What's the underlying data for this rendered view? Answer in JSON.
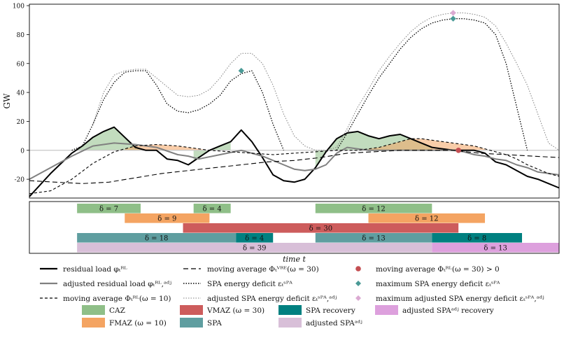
{
  "chart_data": [
    {
      "type": "line",
      "ylabel": "GW",
      "ylim": [
        -33,
        101
      ],
      "xlim": [
        0,
        100
      ],
      "y_ticks": [
        -20,
        0,
        20,
        40,
        60,
        80,
        100
      ],
      "zero_line": 0,
      "series": [
        {
          "name": "residual load",
          "key": "rl",
          "x": [
            0,
            2,
            4,
            6,
            8,
            10,
            12,
            14,
            16,
            18,
            20,
            22,
            24,
            26,
            28,
            30,
            32,
            34,
            36,
            38,
            40,
            42,
            44,
            46,
            48,
            50,
            52,
            54,
            56,
            58,
            60,
            62,
            64,
            66,
            68,
            70,
            72,
            74,
            76,
            78,
            80,
            82,
            84,
            86,
            88,
            90,
            92,
            94,
            96,
            98,
            100
          ],
          "y": [
            -32,
            -24,
            -16,
            -9,
            -2,
            3,
            9,
            13,
            16,
            9,
            2,
            0,
            0,
            -6,
            -7,
            -10,
            -5,
            0,
            3,
            6,
            14,
            6,
            -5,
            -17,
            -21,
            -22,
            -20,
            -12,
            -1,
            8,
            12,
            13,
            10,
            8,
            10,
            11,
            8,
            5,
            2,
            1,
            0,
            0,
            0,
            -2,
            -8,
            -10,
            -14,
            -18,
            -20,
            -23,
            -26
          ]
        },
        {
          "name": "adjusted residual load",
          "key": "rl_adj",
          "x": [
            0,
            4,
            8,
            12,
            16,
            20,
            24,
            28,
            30,
            32,
            36,
            40,
            44,
            48,
            50,
            52,
            54,
            56,
            58,
            60,
            62,
            64,
            66,
            68,
            70,
            72,
            74,
            76,
            78,
            80,
            82,
            84,
            86,
            88,
            90,
            92,
            94,
            96,
            98,
            100
          ],
          "y": [
            -20,
            -12,
            -4,
            3,
            5,
            4,
            2,
            -3,
            -4,
            -6,
            -3,
            0,
            -4,
            -10,
            -13,
            -14,
            -13,
            -10,
            -2,
            2,
            1,
            0,
            0,
            0,
            0,
            0,
            0,
            0,
            0,
            0,
            -1,
            -3,
            -4,
            -6,
            -7,
            -10,
            -12,
            -15,
            -16,
            -17
          ]
        },
        {
          "name": "moving average (omega=10)",
          "key": "ma10",
          "x": [
            0,
            4,
            8,
            12,
            16,
            20,
            24,
            28,
            30,
            34,
            38,
            42,
            46,
            50,
            54,
            58,
            62,
            66,
            70,
            72,
            74,
            76,
            78,
            80,
            82,
            84,
            86,
            88,
            90,
            92,
            94,
            96,
            98,
            100
          ],
          "y": [
            -30,
            -28,
            -20,
            -9,
            -1,
            3,
            4,
            3,
            2,
            0,
            -1,
            -2,
            -3,
            -2,
            -1,
            0,
            0,
            2,
            6,
            8,
            8,
            7,
            6,
            5,
            4,
            3,
            1,
            -1,
            -3,
            -6,
            -10,
            -13,
            -16,
            -18
          ]
        },
        {
          "name": "moving average VRE (omega=30)",
          "key": "ma30",
          "x": [
            0,
            5,
            10,
            15,
            20,
            25,
            30,
            35,
            40,
            45,
            50,
            55,
            60,
            65,
            70,
            75,
            80,
            85,
            90,
            95,
            100
          ],
          "y": [
            -21,
            -22,
            -23,
            -22,
            -19,
            -16,
            -14,
            -12,
            -10,
            -8,
            -7,
            -5,
            -2,
            -1,
            0,
            0,
            0,
            -2,
            -3,
            -4,
            -5
          ]
        },
        {
          "name": "SPA energy deficit",
          "key": "spa",
          "x": [
            8,
            10,
            12,
            14,
            16,
            18,
            20,
            22,
            24,
            26,
            28,
            30,
            32,
            34,
            36,
            38,
            40,
            42,
            44,
            46,
            48,
            50,
            52,
            54,
            56,
            58,
            60,
            62,
            64,
            66,
            68,
            70,
            72,
            74,
            76,
            78,
            80,
            82,
            84,
            86,
            88,
            90,
            92,
            94,
            96,
            98,
            100
          ],
          "y": [
            0,
            3,
            18,
            35,
            47,
            54,
            55,
            55,
            45,
            32,
            27,
            26,
            28,
            32,
            38,
            48,
            53,
            55,
            40,
            18,
            0,
            null,
            null,
            null,
            null,
            0,
            12,
            25,
            38,
            50,
            60,
            70,
            78,
            84,
            88,
            90,
            91,
            91,
            90,
            88,
            80,
            60,
            30,
            0,
            null,
            null,
            null
          ]
        },
        {
          "name": "adjusted SPA energy deficit",
          "key": "spa_adj",
          "x": [
            8,
            10,
            12,
            14,
            16,
            18,
            20,
            22,
            24,
            26,
            28,
            30,
            32,
            34,
            36,
            38,
            40,
            42,
            44,
            46,
            48,
            50,
            52,
            54,
            56,
            58,
            60,
            62,
            64,
            66,
            68,
            70,
            72,
            74,
            76,
            78,
            80,
            82,
            84,
            86,
            88,
            90,
            92,
            94,
            96,
            98,
            100
          ],
          "y": [
            null,
            null,
            18,
            40,
            52,
            55,
            56,
            56,
            50,
            44,
            38,
            37,
            38,
            42,
            50,
            60,
            67,
            67,
            60,
            45,
            25,
            10,
            3,
            0,
            0,
            2,
            15,
            30,
            42,
            55,
            65,
            74,
            82,
            88,
            92,
            94,
            95,
            95,
            94,
            92,
            86,
            74,
            60,
            45,
            25,
            5,
            0
          ]
        }
      ],
      "markers": [
        {
          "name": "moving average (omega=30) > 0",
          "x": 81,
          "y": 0,
          "color": "#c44e52",
          "shape": "circle"
        },
        {
          "name": "maximum SPA energy deficit",
          "x": 40,
          "y": 55,
          "color": "#4a9a96",
          "shape": "diamond"
        },
        {
          "name": "maximum SPA energy deficit",
          "x": 80,
          "y": 91,
          "color": "#4a9a96",
          "shape": "diamond"
        },
        {
          "name": "maximum adjusted SPA energy deficit",
          "x": 80,
          "y": 95,
          "color": "#dba9d2",
          "shape": "diamond"
        }
      ]
    },
    {
      "type": "gantt",
      "xlabel": "time t",
      "xlim": [
        0,
        100
      ],
      "rows": [
        [
          {
            "label": "δ = 7",
            "start": 9,
            "end": 21,
            "color": "#8fbf88"
          },
          {
            "label": "δ = 4",
            "start": 31,
            "end": 38,
            "color": "#8fbf88"
          },
          {
            "label": "δ = 12",
            "start": 54,
            "end": 76,
            "color": "#8fbf88"
          }
        ],
        [
          {
            "label": "δ = 9",
            "start": 18,
            "end": 34,
            "color": "#f4a462"
          },
          {
            "label": "δ = 12",
            "start": 64,
            "end": 86,
            "color": "#f4a462"
          }
        ],
        [
          {
            "label": "δ = 30",
            "start": 29,
            "end": 81,
            "color": "#cd5c5c"
          }
        ],
        [
          {
            "label": "δ = 18",
            "start": 9,
            "end": 39,
            "color": "#5f9ea0"
          },
          {
            "label": "δ = 4",
            "start": 39,
            "end": 46,
            "color": "#008080"
          },
          {
            "label": "δ = 13",
            "start": 54,
            "end": 76,
            "color": "#5f9ea0"
          },
          {
            "label": "δ = 8",
            "start": 76,
            "end": 93,
            "color": "#008080"
          }
        ],
        [
          {
            "label": "δ = 39",
            "start": 9,
            "end": 76,
            "color": "#d8bfd8"
          },
          {
            "label": "δ = 13",
            "start": 76,
            "end": 100,
            "color": "#dda0dd"
          }
        ]
      ]
    }
  ],
  "legend": {
    "lines": [
      {
        "label": "residual load φₜᴿᴸ",
        "style": "solid",
        "color": "#000000",
        "width": 2.2
      },
      {
        "label": "adjusted residual load φₜᴿᴸ,ᵃᵈʲ",
        "style": "solid",
        "color": "#808080",
        "width": 2.2
      },
      {
        "label": "moving average Φₜᴿᴸ(ω = 10)",
        "style": "dashed",
        "color": "#000000",
        "width": 1.2
      },
      {
        "label": "moving average Φₜⱽᴿᴱ(ω = 30)",
        "style": "longdash",
        "color": "#000000",
        "width": 1.2
      },
      {
        "label": "SPA energy deficit εₜˢᴾᴬ",
        "style": "dotted",
        "color": "#000000",
        "width": 1.4
      },
      {
        "label": "adjusted SPA energy deficit εₜˢᴾᴬ,ᵃᵈʲ",
        "style": "dotted",
        "color": "#808080",
        "width": 1.0
      },
      {
        "label": "moving average Φₜᴿᴸ(ω = 30) > 0",
        "marker": "circle",
        "color": "#c44e52"
      },
      {
        "label": "maximum SPA energy deficit εₜˢᴾᴬ",
        "marker": "diamond",
        "color": "#4a9a96"
      },
      {
        "label": "maximum adjusted SPA energy deficit εₜˢᴾᴬ,ᵃᵈʲ",
        "marker": "diamond",
        "color": "#dba9d2"
      }
    ],
    "patches": [
      {
        "label": "CAZ",
        "color": "#8fbf88"
      },
      {
        "label": "VMAZ (ω = 30)",
        "color": "#cd5c5c"
      },
      {
        "label": "SPA recovery",
        "color": "#008080"
      },
      {
        "label": "adjusted SPAᵃᵈʲ recovery",
        "color": "#dda0dd"
      },
      {
        "label": "FMAZ (ω = 10)",
        "color": "#f4a462"
      },
      {
        "label": "SPA",
        "color": "#5f9ea0"
      },
      {
        "label": "adjusted SPAᵃᵈʲ",
        "color": "#d8bfd8"
      }
    ]
  }
}
